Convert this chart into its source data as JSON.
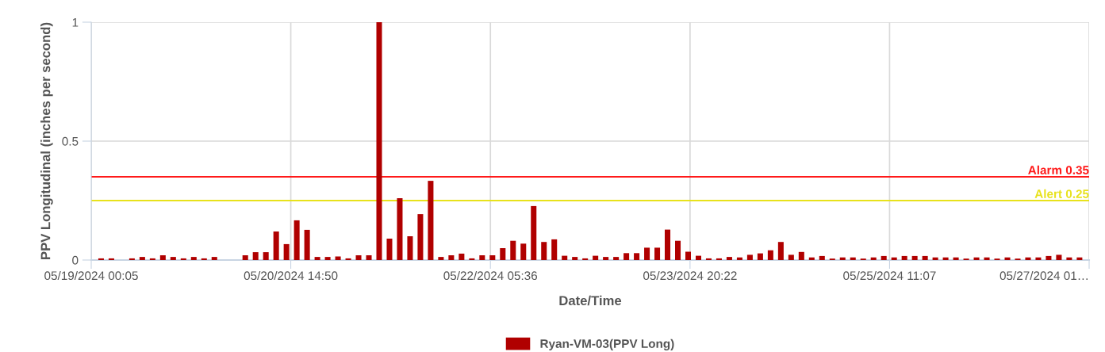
{
  "chart_data": {
    "type": "bar",
    "xlabel": "Date/Time",
    "ylabel": "PPV Longitudinal (inches per second)",
    "x": [
      "2024-05-19T02:00",
      "2024-05-19T04:00",
      "2024-05-19T06:00",
      "2024-05-19T08:00",
      "2024-05-19T10:00",
      "2024-05-19T12:00",
      "2024-05-19T14:00",
      "2024-05-19T16:00",
      "2024-05-19T18:00",
      "2024-05-19T20:00",
      "2024-05-19T22:00",
      "2024-05-20T00:00",
      "2024-05-20T02:00",
      "2024-05-20T04:00",
      "2024-05-20T06:00",
      "2024-05-20T08:00",
      "2024-05-20T10:00",
      "2024-05-20T12:00",
      "2024-05-20T14:00",
      "2024-05-20T16:00",
      "2024-05-20T18:00",
      "2024-05-20T20:00",
      "2024-05-20T22:00",
      "2024-05-21T00:00",
      "2024-05-21T02:00",
      "2024-05-21T04:00",
      "2024-05-21T06:00",
      "2024-05-21T08:00",
      "2024-05-21T10:00",
      "2024-05-21T12:00",
      "2024-05-21T14:00",
      "2024-05-21T16:00",
      "2024-05-21T18:00",
      "2024-05-21T20:00",
      "2024-05-21T22:00",
      "2024-05-22T00:00",
      "2024-05-22T02:00",
      "2024-05-22T04:00",
      "2024-05-22T06:00",
      "2024-05-22T08:00",
      "2024-05-22T10:00",
      "2024-05-22T12:00",
      "2024-05-22T14:00",
      "2024-05-22T16:00",
      "2024-05-22T18:00",
      "2024-05-22T20:00",
      "2024-05-22T22:00",
      "2024-05-23T00:00",
      "2024-05-23T02:00",
      "2024-05-23T04:00",
      "2024-05-23T06:00",
      "2024-05-23T08:00",
      "2024-05-23T10:00",
      "2024-05-23T12:00",
      "2024-05-23T14:00",
      "2024-05-23T16:00",
      "2024-05-23T18:00",
      "2024-05-23T20:00",
      "2024-05-23T22:00",
      "2024-05-24T00:00",
      "2024-05-24T02:00",
      "2024-05-24T04:00",
      "2024-05-24T06:00",
      "2024-05-24T08:00",
      "2024-05-24T10:00",
      "2024-05-24T12:00",
      "2024-05-24T14:00",
      "2024-05-24T16:00",
      "2024-05-24T18:00",
      "2024-05-24T20:00",
      "2024-05-24T22:00",
      "2024-05-25T00:00",
      "2024-05-25T02:00",
      "2024-05-25T04:00",
      "2024-05-25T06:00",
      "2024-05-25T08:00",
      "2024-05-25T10:00",
      "2024-05-25T12:00",
      "2024-05-25T14:00",
      "2024-05-25T16:00",
      "2024-05-25T18:00",
      "2024-05-25T20:00",
      "2024-05-25T22:00",
      "2024-05-26T00:00",
      "2024-05-26T02:00",
      "2024-05-26T04:00",
      "2024-05-26T06:00",
      "2024-05-26T08:00",
      "2024-05-26T10:00",
      "2024-05-26T12:00",
      "2024-05-26T14:00",
      "2024-05-26T16:00",
      "2024-05-26T18:00",
      "2024-05-26T20:00",
      "2024-05-26T22:00",
      "2024-05-27T00:00"
    ],
    "series": [
      {
        "name": "Ryan-VM-03(PPV Long)",
        "color": "#b00000",
        "values": [
          0.007,
          0.007,
          null,
          0.007,
          0.013,
          0.007,
          0.02,
          0.013,
          0.007,
          0.013,
          0.007,
          0.013,
          null,
          null,
          0.02,
          0.033,
          0.033,
          0.12,
          0.067,
          0.167,
          0.127,
          0.013,
          0.013,
          0.015,
          0.007,
          0.02,
          0.02,
          1.0,
          0.09,
          0.26,
          0.1,
          0.193,
          0.333,
          0.013,
          0.02,
          0.027,
          0.007,
          0.02,
          0.02,
          0.05,
          0.081,
          0.069,
          0.227,
          0.076,
          0.087,
          0.018,
          0.013,
          0.007,
          0.018,
          0.013,
          0.013,
          0.029,
          0.029,
          0.052,
          0.052,
          0.128,
          0.081,
          0.035,
          0.018,
          0.007,
          0.007,
          0.013,
          0.011,
          0.022,
          0.028,
          0.041,
          0.076,
          0.022,
          0.034,
          0.011,
          0.017,
          0.006,
          0.011,
          0.011,
          0.006,
          0.011,
          0.017,
          0.011,
          0.017,
          0.017,
          0.017,
          0.011,
          0.011,
          0.011,
          0.006,
          0.011,
          0.011,
          0.006,
          0.011,
          0.006,
          0.011,
          0.011,
          0.017,
          0.022,
          0.011,
          0.011
        ]
      }
    ],
    "xlim": [
      "2024-05-19T00:05",
      "2024-05-27T01:52"
    ],
    "xticks": [
      {
        "value": "2024-05-19T00:05",
        "label": "05/19/2024 00:05"
      },
      {
        "value": "2024-05-20T14:50",
        "label": "05/20/2024 14:50"
      },
      {
        "value": "2024-05-22T05:36",
        "label": "05/22/2024 05:36"
      },
      {
        "value": "2024-05-23T20:22",
        "label": "05/23/2024 20:22"
      },
      {
        "value": "2024-05-25T11:07",
        "label": "05/25/2024 11:07"
      },
      {
        "value": "2024-05-27T01:52",
        "label": "05/27/2024 01…"
      }
    ],
    "ylim": [
      0,
      1
    ],
    "yticks": [
      0,
      0.5,
      1
    ],
    "ref_lines": [
      {
        "axis": "y",
        "value": 0.35,
        "label": "Alarm 0.35",
        "color": "#ff1a1a"
      },
      {
        "axis": "y",
        "value": 0.25,
        "label": "Alert 0.25",
        "color": "#e8e21c"
      }
    ],
    "grid": true,
    "legend": "bottom"
  }
}
